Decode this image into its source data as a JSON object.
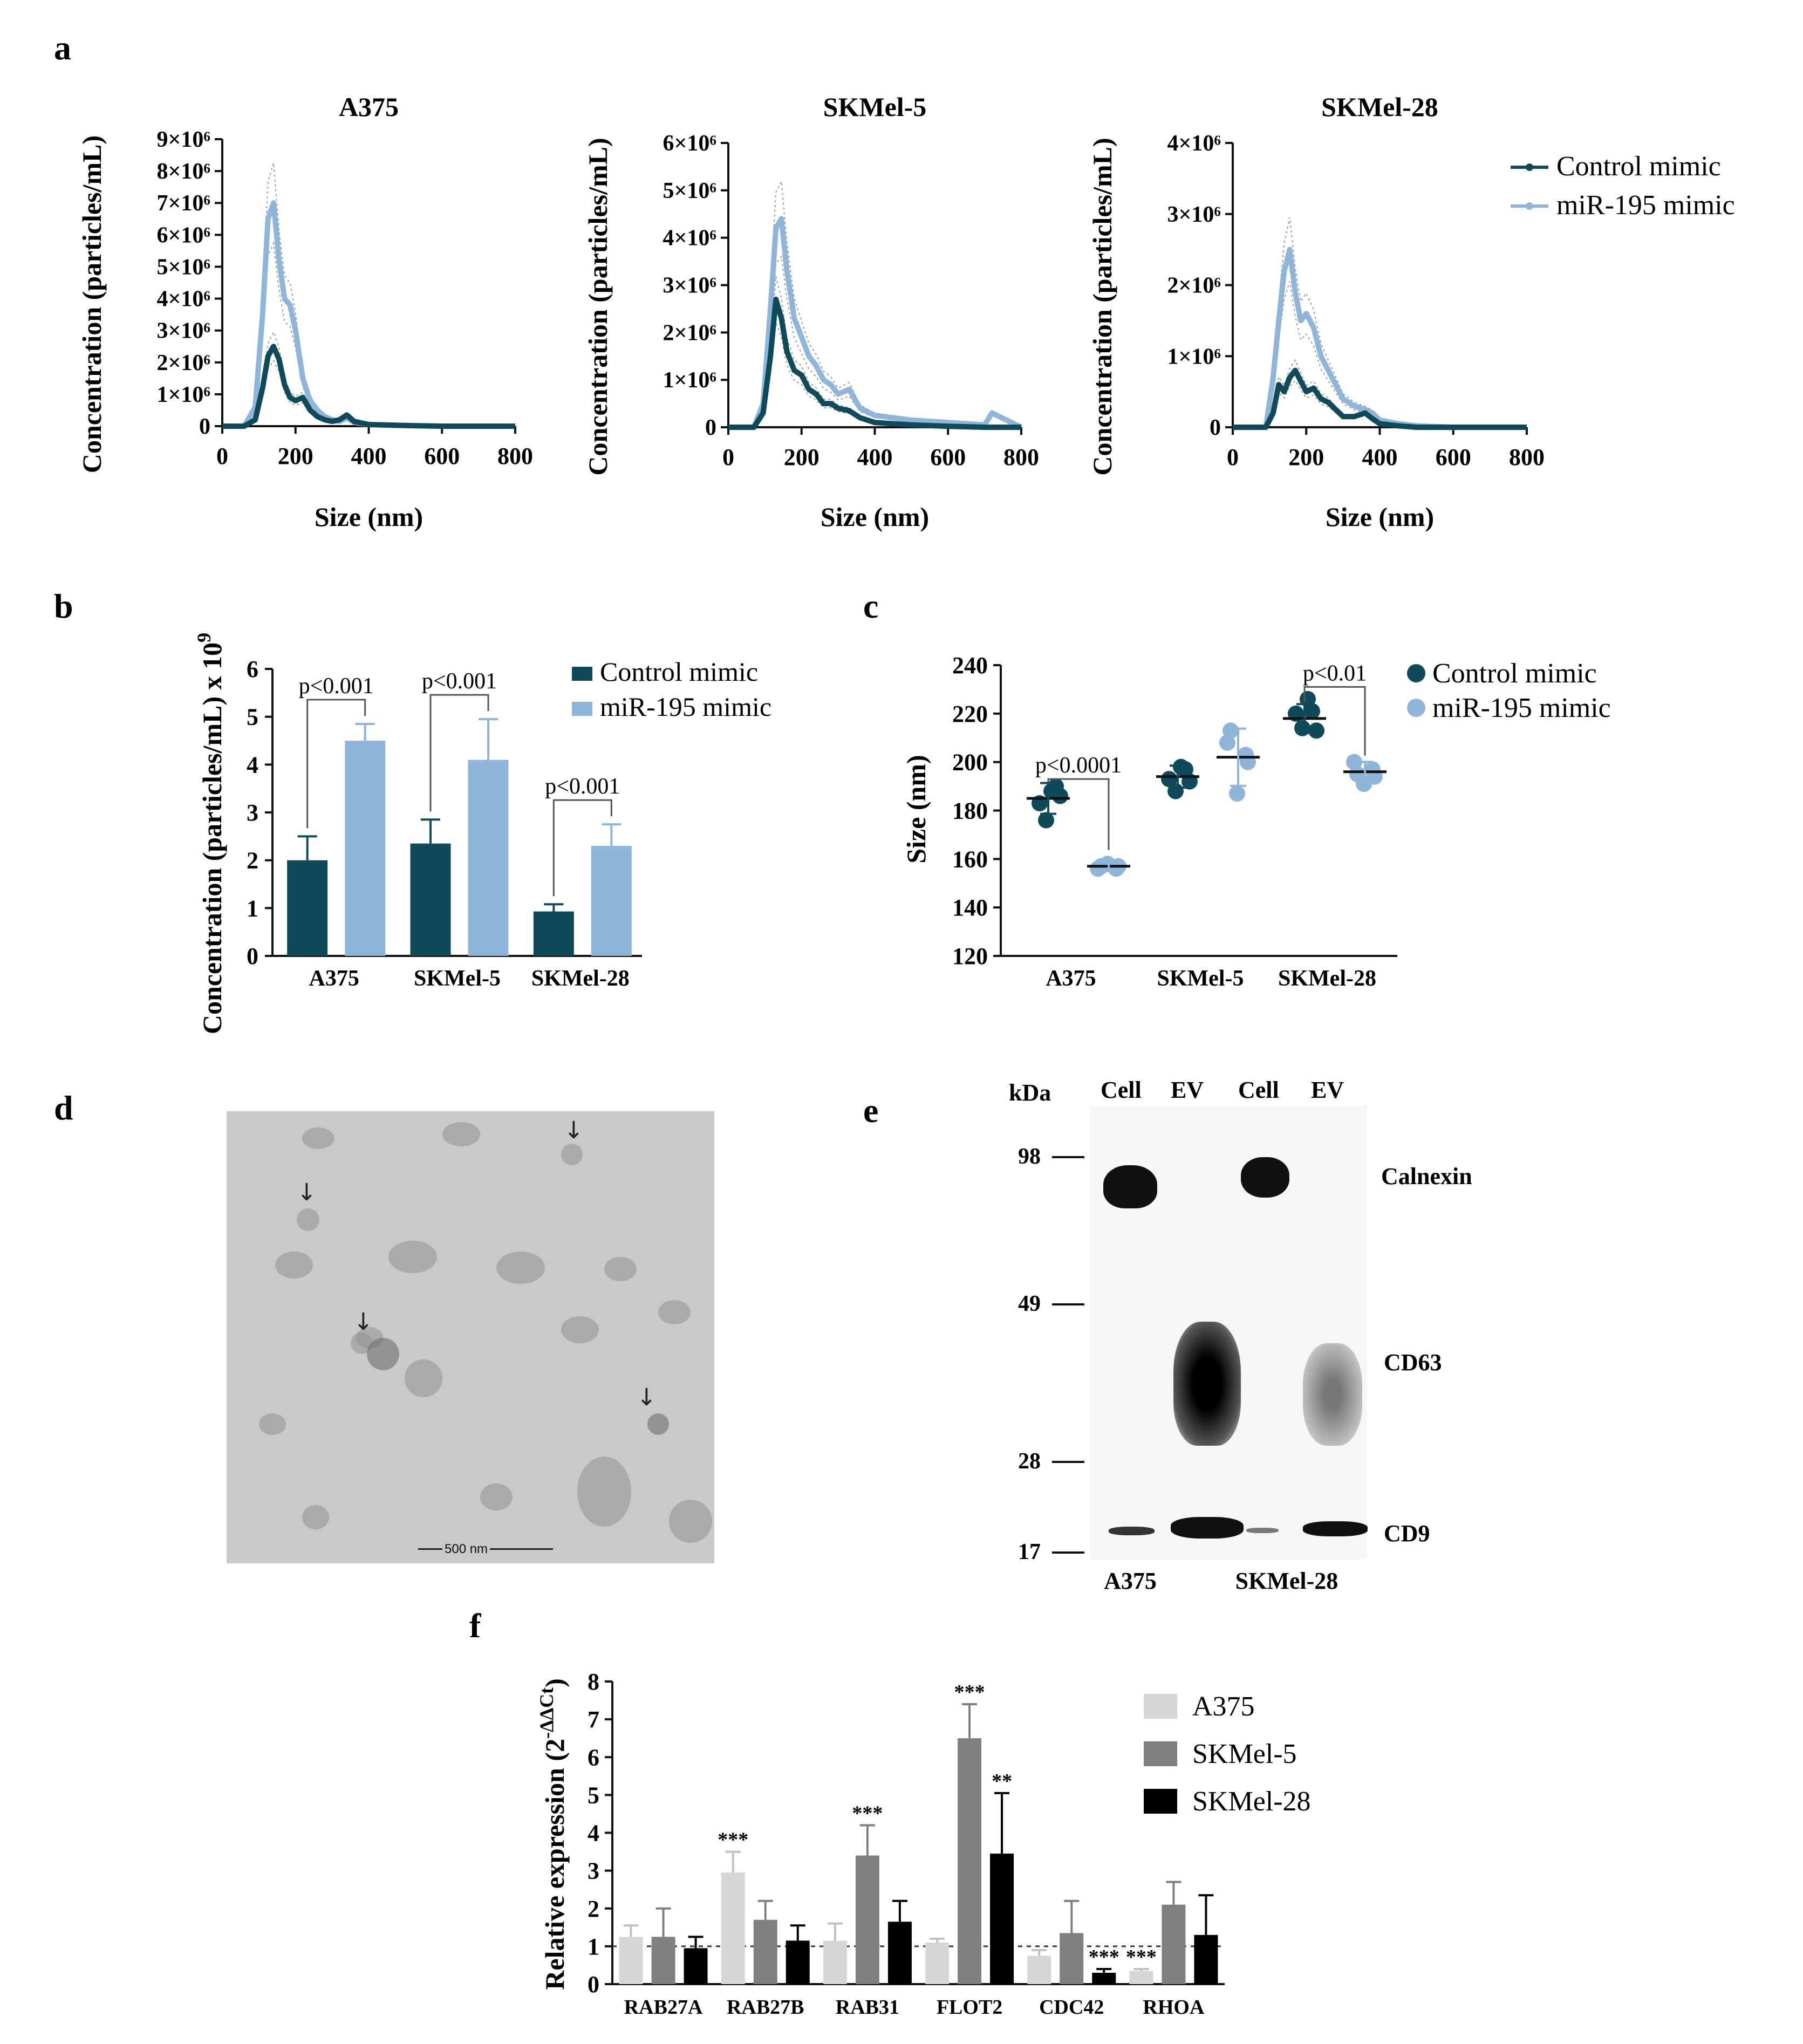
{
  "panel_labels": [
    "a",
    "b",
    "c",
    "d",
    "e",
    "f"
  ],
  "colors": {
    "control": "#0e4a5a",
    "mir195": "#8fb5da",
    "a375": "#d6d6d6",
    "skmel5": "#7f7f7f",
    "skmel28": "#000000"
  },
  "panel_a": {
    "legend": [
      "Control mimic",
      "miR-195 mimic"
    ],
    "xlabel": "Size (nm)",
    "ylabel": "Concentration (particles/mL)",
    "x_ticks": [
      "0",
      "200",
      "400",
      "600",
      "800"
    ]
  },
  "panel_b": {
    "ylabel": "Concentration (particles/mL) x 10",
    "ylabel_exp": "9",
    "legend": [
      "Control mimic",
      "miR-195 mimic"
    ],
    "y_ticks": [
      "0",
      "1",
      "2",
      "3",
      "4",
      "5",
      "6"
    ],
    "categories": [
      "A375",
      "SKMel-5",
      "SKMel-28"
    ],
    "pvalues": [
      "p<0.001",
      "p<0.001",
      "p<0.001"
    ]
  },
  "panel_c": {
    "ylabel": "Size (nm)",
    "legend": [
      "Control mimic",
      "miR-195 mimic"
    ],
    "y_ticks": [
      "120",
      "140",
      "160",
      "180",
      "200",
      "220",
      "240"
    ],
    "categories": [
      "A375",
      "SKMel-5",
      "SKMel-28"
    ],
    "pvalues": [
      "p<0.0001",
      "p<0.01"
    ]
  },
  "panel_d": {
    "scale_bar": "500 nm"
  },
  "panel_e": {
    "kda_label": "kDa",
    "lanes": [
      "Cell",
      "EV",
      "Cell",
      "EV"
    ],
    "markers": [
      "98",
      "49",
      "28",
      "17"
    ],
    "proteins": [
      "Calnexin",
      "CD63",
      "CD9"
    ],
    "cell_lines": [
      "A375",
      "SKMel-28"
    ]
  },
  "panel_f": {
    "ylabel": "Relative expression (2",
    "ylabel_exp": "-ΔΔCt",
    "ylabel_close": ")",
    "y_ticks": [
      "0",
      "1",
      "2",
      "3",
      "4",
      "5",
      "6",
      "7",
      "8"
    ],
    "legend": [
      "A375",
      "SKMel-5",
      "SKMel-28"
    ]
  },
  "chart_data": [
    {
      "id": "a-A375",
      "type": "line",
      "title": "A375",
      "xlabel": "Size (nm)",
      "ylabel": "Concentration (particles/mL)",
      "xlim": [
        0,
        800
      ],
      "ylim": [
        0,
        9000000
      ],
      "y_tick_labels": [
        "0",
        "1×10⁶",
        "2×10⁶",
        "3×10⁶",
        "4×10⁶",
        "5×10⁶",
        "6×10⁶",
        "7×10⁶",
        "8×10⁶",
        "9×10⁶"
      ],
      "x": [
        0,
        60,
        90,
        110,
        125,
        140,
        155,
        170,
        185,
        200,
        220,
        240,
        260,
        280,
        300,
        320,
        340,
        360,
        400,
        500,
        600,
        800
      ],
      "series": [
        {
          "name": "Control mimic",
          "values": [
            0,
            0,
            200000,
            1200000,
            2200000,
            2500000,
            2100000,
            1300000,
            900000,
            800000,
            900000,
            500000,
            300000,
            200000,
            150000,
            200000,
            350000,
            150000,
            50000,
            20000,
            0,
            0
          ]
        },
        {
          "name": "miR-195 mimic",
          "values": [
            0,
            0,
            600000,
            3500000,
            6500000,
            7000000,
            5200000,
            4000000,
            3800000,
            3000000,
            1500000,
            800000,
            500000,
            300000,
            200000,
            150000,
            250000,
            120000,
            50000,
            20000,
            0,
            0
          ]
        }
      ]
    },
    {
      "id": "a-SKMel-5",
      "type": "line",
      "title": "SKMel-5",
      "xlabel": "Size (nm)",
      "ylabel": "Concentration (particles/mL)",
      "xlim": [
        0,
        800
      ],
      "ylim": [
        0,
        6000000
      ],
      "y_tick_labels": [
        "0",
        "1×10⁶",
        "2×10⁶",
        "3×10⁶",
        "4×10⁶",
        "5×10⁶",
        "6×10⁶"
      ],
      "x": [
        0,
        70,
        95,
        115,
        130,
        145,
        160,
        180,
        200,
        220,
        240,
        260,
        280,
        300,
        330,
        360,
        400,
        500,
        600,
        700,
        720,
        800
      ],
      "series": [
        {
          "name": "Control mimic",
          "values": [
            0,
            0,
            300000,
            1500000,
            2700000,
            2300000,
            1600000,
            1200000,
            1100000,
            800000,
            700000,
            500000,
            500000,
            400000,
            350000,
            200000,
            100000,
            50000,
            20000,
            0,
            0,
            0
          ]
        },
        {
          "name": "miR-195 mimic",
          "values": [
            0,
            0,
            500000,
            2500000,
            4200000,
            4400000,
            3300000,
            2300000,
            1900000,
            1500000,
            1300000,
            1000000,
            900000,
            700000,
            800000,
            400000,
            250000,
            150000,
            100000,
            50000,
            300000,
            0
          ]
        }
      ]
    },
    {
      "id": "a-SKMel-28",
      "type": "line",
      "title": "SKMel-28",
      "xlabel": "Size (nm)",
      "ylabel": "Concentration (particles/mL)",
      "xlim": [
        0,
        800
      ],
      "ylim": [
        0,
        4000000
      ],
      "y_tick_labels": [
        "0",
        "1×10⁶",
        "2×10⁶",
        "3×10⁶",
        "4×10⁶"
      ],
      "x": [
        0,
        90,
        110,
        125,
        140,
        155,
        170,
        185,
        200,
        220,
        240,
        260,
        280,
        300,
        330,
        360,
        380,
        400,
        450,
        500,
        600,
        800
      ],
      "series": [
        {
          "name": "Control mimic",
          "values": [
            0,
            0,
            200000,
            600000,
            500000,
            700000,
            800000,
            650000,
            500000,
            550000,
            400000,
            350000,
            250000,
            150000,
            150000,
            200000,
            120000,
            50000,
            20000,
            0,
            0,
            0
          ]
        },
        {
          "name": "miR-195 mimic",
          "values": [
            0,
            0,
            700000,
            1500000,
            2200000,
            2500000,
            1900000,
            1500000,
            1600000,
            1400000,
            1000000,
            800000,
            600000,
            400000,
            300000,
            250000,
            200000,
            100000,
            50000,
            20000,
            0,
            0
          ]
        }
      ]
    },
    {
      "id": "b",
      "type": "bar",
      "ylabel": "Concentration (particles/mL) x 10⁹",
      "ylim": [
        0,
        6
      ],
      "categories": [
        "A375",
        "SKMel-5",
        "SKMel-28"
      ],
      "series": [
        {
          "name": "Control mimic",
          "values": [
            2.0,
            2.35,
            0.93
          ],
          "errors": [
            0.5,
            0.5,
            0.15
          ]
        },
        {
          "name": "miR-195 mimic",
          "values": [
            4.5,
            4.1,
            2.3
          ],
          "errors": [
            0.35,
            0.85,
            0.45
          ]
        }
      ],
      "annotations": [
        "p<0.001",
        "p<0.001",
        "p<0.001"
      ]
    },
    {
      "id": "c",
      "type": "scatter",
      "ylabel": "Size (nm)",
      "ylim": [
        120,
        240
      ],
      "categories": [
        "A375",
        "SKMel-5",
        "SKMel-28"
      ],
      "series": [
        {
          "name": "Control mimic",
          "points": [
            [
              183,
              188,
              186,
              176,
              190
            ],
            [
              193,
              198,
              192,
              188,
              197
            ],
            [
              220,
              226,
              213,
              214,
              221
            ]
          ],
          "means": [
            185,
            194,
            218
          ]
        },
        {
          "name": "miR-195 mimic",
          "points": [
            [
              157,
              156,
              158,
              156,
              157
            ],
            [
              213,
              208,
              187,
              203,
              200
            ],
            [
              195,
              200,
              191,
              197,
              194
            ]
          ],
          "means": [
            157,
            202,
            196
          ]
        }
      ],
      "annotations": [
        "p<0.0001",
        "p<0.01"
      ]
    },
    {
      "id": "f",
      "type": "bar",
      "ylabel": "Relative expression (2^-ΔΔCt)",
      "ylim": [
        0,
        8
      ],
      "categories": [
        "RAB27A",
        "RAB27B",
        "RAB31",
        "FLOT2",
        "CDC42",
        "RHOA"
      ],
      "reference_line": 1,
      "series": [
        {
          "name": "A375",
          "values": [
            1.25,
            2.95,
            1.15,
            1.1,
            0.75,
            0.35
          ],
          "errors": [
            0.3,
            0.55,
            0.45,
            0.1,
            0.15,
            0.05
          ]
        },
        {
          "name": "SKMel-5",
          "values": [
            1.25,
            1.7,
            3.4,
            6.5,
            1.35,
            2.1
          ],
          "errors": [
            0.75,
            0.5,
            0.8,
            0.9,
            0.85,
            0.6
          ]
        },
        {
          "name": "SKMel-28",
          "values": [
            0.95,
            1.15,
            1.65,
            3.45,
            0.3,
            1.3
          ],
          "errors": [
            0.3,
            0.4,
            0.55,
            1.6,
            0.1,
            1.05
          ]
        }
      ],
      "significance": [
        {
          "category": "RAB27B",
          "series": "A375",
          "label": "***"
        },
        {
          "category": "RAB31",
          "series": "SKMel-5",
          "label": "***"
        },
        {
          "category": "FLOT2",
          "series": "SKMel-5",
          "label": "***"
        },
        {
          "category": "FLOT2",
          "series": "SKMel-28",
          "label": "**"
        },
        {
          "category": "CDC42",
          "series": "SKMel-28",
          "label": "***"
        },
        {
          "category": "RHOA",
          "series": "A375",
          "label": "***"
        }
      ]
    }
  ]
}
